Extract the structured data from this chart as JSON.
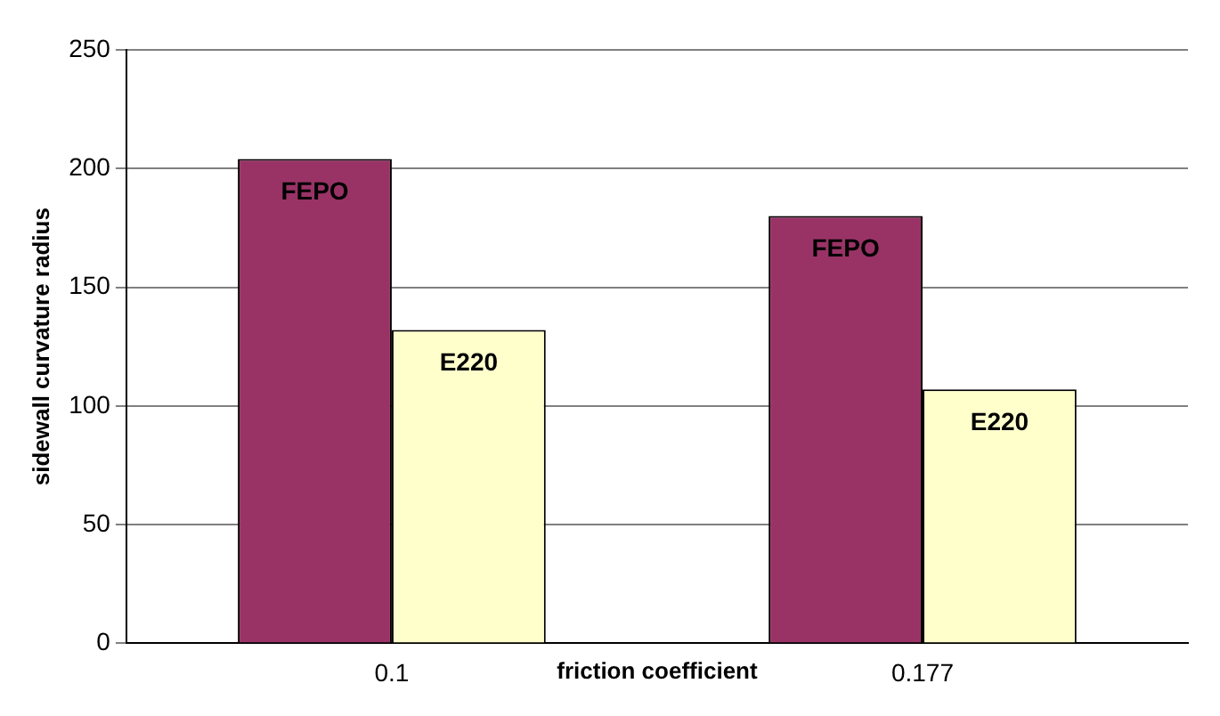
{
  "chart_data": {
    "type": "bar",
    "ylabel": "sidewall curvature radius",
    "xlabel": "friction coefficient",
    "categories": [
      "0.1",
      "0.177"
    ],
    "series": [
      {
        "name": "FEPO",
        "color": "#993366",
        "values": [
          204,
          180
        ]
      },
      {
        "name": "E220",
        "color": "#ffffcc",
        "values": [
          132,
          107
        ]
      }
    ],
    "ylim": [
      0,
      250
    ],
    "yticks": [
      0,
      50,
      100,
      150,
      200,
      250
    ],
    "grid": "y",
    "legend": false
  }
}
